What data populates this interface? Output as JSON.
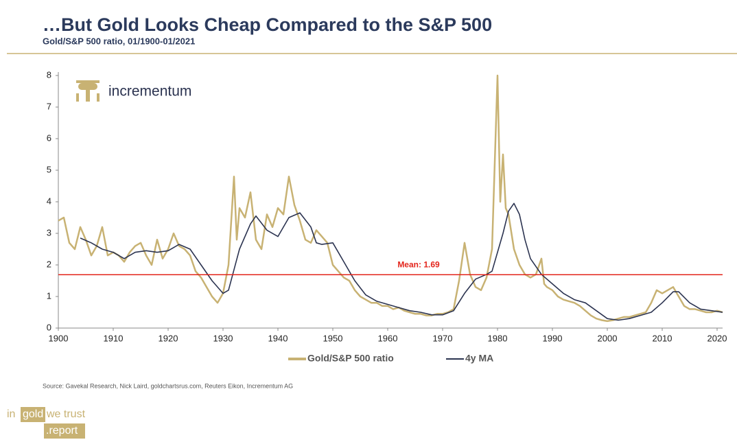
{
  "chart_data": {
    "type": "line",
    "title": "…But Gold Looks Cheap Compared to the S&P 500",
    "subtitle": "Gold/S&P 500 ratio, 01/1900-01/2021",
    "source": "Source: Gavekal Research, Nick Laird, goldchartsrus.com, Reuters Eikon, Incrementum AG",
    "xlim": [
      1900,
      2021
    ],
    "xticks": [
      1900,
      1910,
      1920,
      1930,
      1940,
      1950,
      1960,
      1970,
      1980,
      1990,
      2000,
      2010,
      2020
    ],
    "ylim": [
      0,
      8
    ],
    "yticks": [
      0,
      1,
      2,
      3,
      4,
      5,
      6,
      7,
      8
    ],
    "mean": {
      "value": 1.69,
      "label": "Mean: 1.69",
      "color": "#e3241b"
    },
    "series": [
      {
        "name": "Gold/S&P 500 ratio",
        "color": "#c8b273",
        "x": [
          1900,
          1901,
          1902,
          1903,
          1904,
          1905,
          1906,
          1907,
          1908,
          1909,
          1910,
          1911,
          1912,
          1913,
          1914,
          1915,
          1916,
          1917,
          1918,
          1919,
          1920,
          1921,
          1922,
          1923,
          1924,
          1925,
          1926,
          1927,
          1928,
          1929,
          1930,
          1931,
          1932,
          1932.5,
          1933,
          1934,
          1935,
          1936,
          1937,
          1938,
          1939,
          1940,
          1941,
          1942,
          1943,
          1944,
          1945,
          1946,
          1947,
          1948,
          1949,
          1950,
          1951,
          1952,
          1953,
          1954,
          1955,
          1956,
          1957,
          1958,
          1959,
          1960,
          1961,
          1962,
          1963,
          1964,
          1965,
          1966,
          1967,
          1968,
          1969,
          1970,
          1971,
          1972,
          1973,
          1974,
          1975,
          1976,
          1977,
          1978,
          1979,
          1980,
          1980.5,
          1981,
          1981.5,
          1982,
          1983,
          1984,
          1985,
          1986,
          1987,
          1988,
          1988.5,
          1989,
          1990,
          1991,
          1992,
          1993,
          1994,
          1995,
          1996,
          1997,
          1998,
          1999,
          2000,
          2001,
          2002,
          2003,
          2004,
          2005,
          2006,
          2007,
          2008,
          2009,
          2010,
          2011,
          2012,
          2013,
          2014,
          2015,
          2016,
          2017,
          2018,
          2019,
          2020,
          2021
        ],
        "values": [
          3.4,
          3.5,
          2.7,
          2.5,
          3.2,
          2.8,
          2.3,
          2.6,
          3.2,
          2.3,
          2.4,
          2.3,
          2.1,
          2.4,
          2.6,
          2.7,
          2.3,
          2.0,
          2.8,
          2.2,
          2.5,
          3.0,
          2.6,
          2.5,
          2.3,
          1.8,
          1.6,
          1.3,
          1.0,
          0.8,
          1.1,
          2.0,
          4.8,
          2.8,
          3.8,
          3.5,
          4.3,
          2.8,
          2.5,
          3.6,
          3.2,
          3.8,
          3.6,
          4.8,
          3.9,
          3.4,
          2.8,
          2.7,
          3.1,
          2.9,
          2.7,
          2.0,
          1.8,
          1.6,
          1.5,
          1.2,
          1.0,
          0.9,
          0.8,
          0.8,
          0.7,
          0.7,
          0.6,
          0.65,
          0.55,
          0.5,
          0.45,
          0.45,
          0.4,
          0.4,
          0.45,
          0.45,
          0.5,
          0.6,
          1.5,
          2.7,
          1.7,
          1.3,
          1.2,
          1.6,
          2.5,
          8.0,
          4.0,
          5.5,
          3.8,
          3.6,
          2.5,
          2.0,
          1.7,
          1.6,
          1.7,
          2.2,
          1.4,
          1.3,
          1.2,
          1.0,
          0.9,
          0.85,
          0.8,
          0.7,
          0.55,
          0.4,
          0.3,
          0.25,
          0.22,
          0.25,
          0.3,
          0.35,
          0.35,
          0.4,
          0.45,
          0.5,
          0.8,
          1.2,
          1.1,
          1.2,
          1.3,
          1.0,
          0.7,
          0.6,
          0.6,
          0.55,
          0.5,
          0.5,
          0.55,
          0.5
        ]
      },
      {
        "name": "4y MA",
        "color": "#2b3350",
        "x": [
          1904,
          1906,
          1908,
          1910,
          1912,
          1914,
          1916,
          1918,
          1920,
          1922,
          1924,
          1926,
          1928,
          1930,
          1931,
          1933,
          1935,
          1936,
          1938,
          1940,
          1942,
          1944,
          1946,
          1947,
          1948,
          1950,
          1952,
          1954,
          1956,
          1958,
          1960,
          1962,
          1964,
          1966,
          1968,
          1970,
          1972,
          1974,
          1976,
          1978,
          1979,
          1981,
          1982,
          1983,
          1984,
          1985,
          1986,
          1988,
          1990,
          1992,
          1994,
          1996,
          1998,
          2000,
          2002,
          2004,
          2006,
          2008,
          2010,
          2012,
          2013,
          2015,
          2017,
          2019,
          2021
        ],
        "values": [
          2.85,
          2.7,
          2.5,
          2.4,
          2.2,
          2.4,
          2.45,
          2.4,
          2.45,
          2.65,
          2.5,
          2.0,
          1.5,
          1.1,
          1.2,
          2.5,
          3.3,
          3.55,
          3.1,
          2.9,
          3.5,
          3.65,
          3.2,
          2.7,
          2.65,
          2.7,
          2.1,
          1.5,
          1.05,
          0.85,
          0.75,
          0.65,
          0.55,
          0.5,
          0.42,
          0.42,
          0.55,
          1.1,
          1.55,
          1.7,
          1.8,
          3.0,
          3.7,
          3.95,
          3.6,
          2.8,
          2.2,
          1.7,
          1.4,
          1.1,
          0.9,
          0.8,
          0.55,
          0.3,
          0.25,
          0.3,
          0.4,
          0.5,
          0.8,
          1.15,
          1.15,
          0.8,
          0.6,
          0.55,
          0.5
        ]
      }
    ]
  },
  "logo": "incrementum",
  "brand": {
    "in": "in",
    "gold": "gold",
    "trust": "we trust",
    "report": ".report"
  }
}
